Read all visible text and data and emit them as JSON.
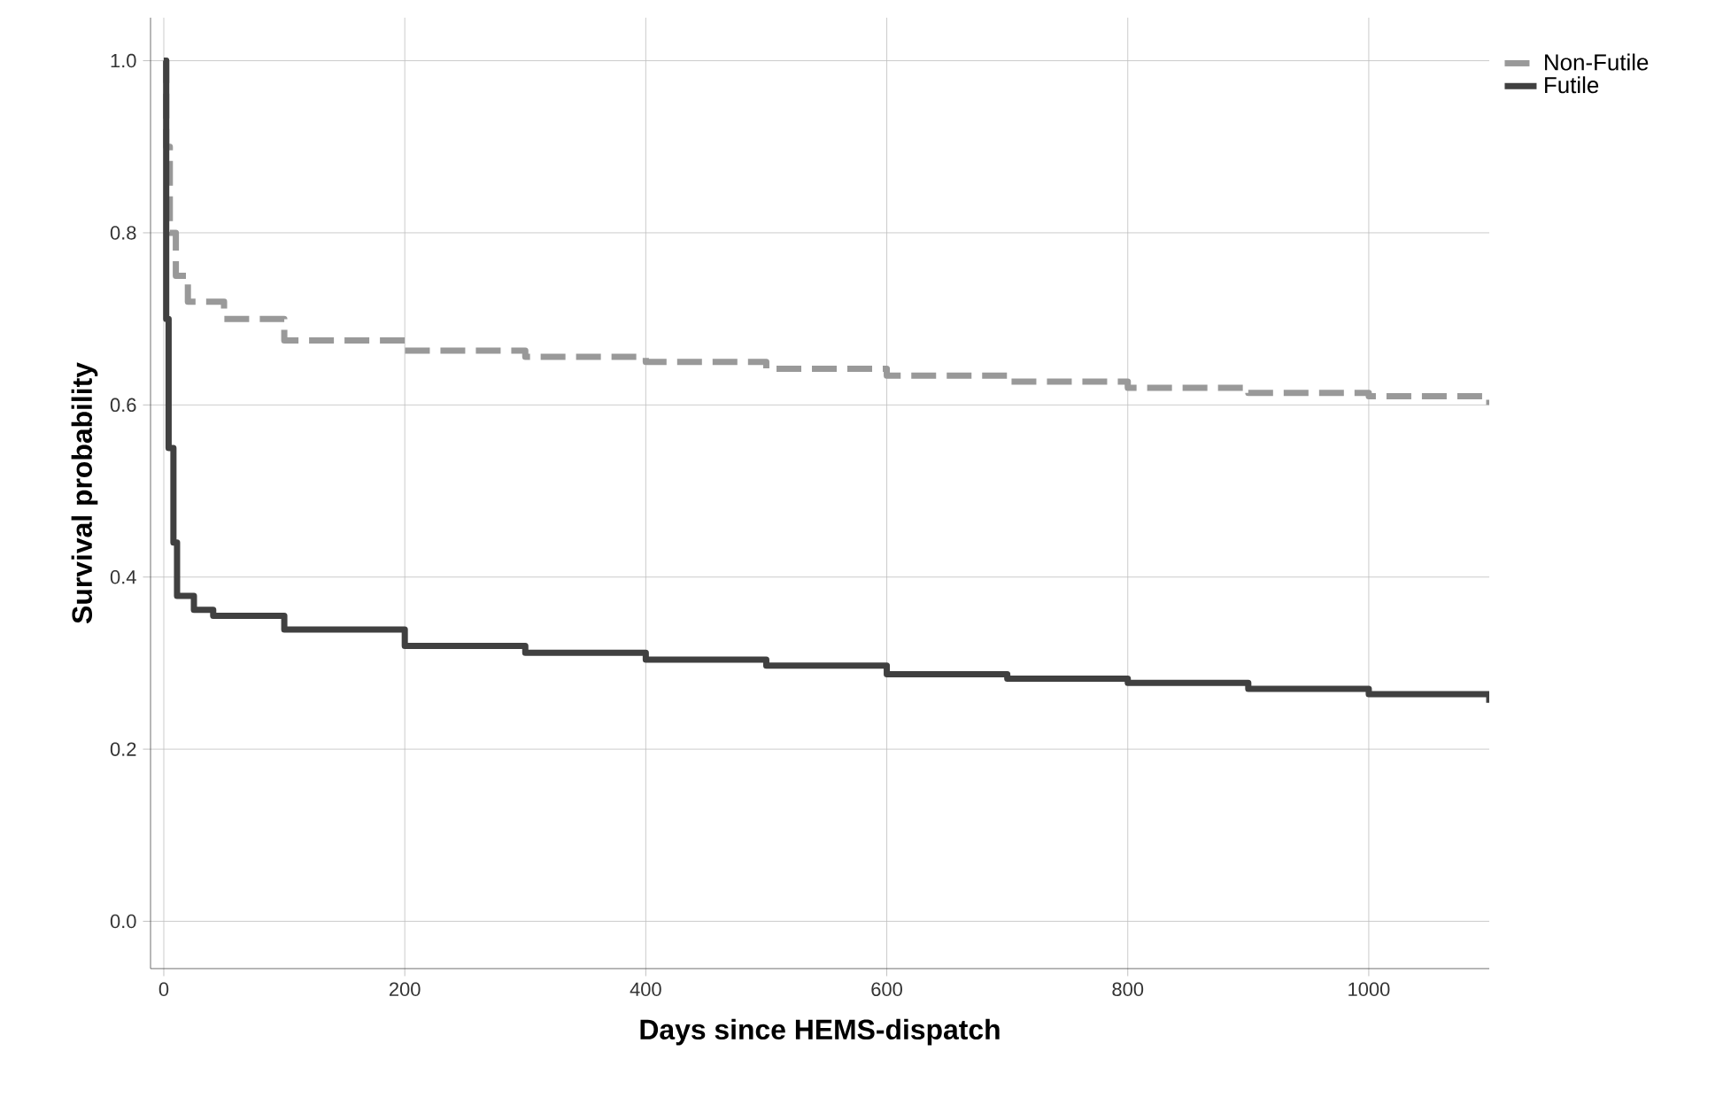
{
  "chart_data": {
    "type": "step",
    "xlabel": "Days since HEMS-dispatch",
    "ylabel": "Survival probability",
    "xlim": [
      -11,
      1100
    ],
    "ylim": [
      -0.055,
      1.05
    ],
    "xticks": [
      0,
      200,
      400,
      600,
      800,
      1000
    ],
    "yticks": [
      {
        "value": 0,
        "label": "0.0"
      },
      {
        "value": 0.2,
        "label": "0.2"
      },
      {
        "value": 0.4,
        "label": "0.4"
      },
      {
        "value": 0.6,
        "label": "0.6"
      },
      {
        "value": 0.8,
        "label": "0.8"
      },
      {
        "value": 1,
        "label": "1.0"
      }
    ],
    "grid": true,
    "legend": "top right",
    "line_style": "solid",
    "series": [
      {
        "name": "Non-Futile",
        "color": "#999999",
        "line_style": "dashed",
        "x": [
          0,
          2,
          5,
          10,
          20,
          50,
          100,
          200,
          300,
          400,
          500,
          600,
          700,
          800,
          900,
          1000,
          1100
        ],
        "values": [
          1.0,
          0.9,
          0.8,
          0.75,
          0.72,
          0.7,
          0.675,
          0.663,
          0.656,
          0.65,
          0.642,
          0.634,
          0.627,
          0.62,
          0.614,
          0.61,
          0.6
        ]
      },
      {
        "name": "Futile",
        "color": "#404040",
        "x": [
          0,
          2,
          4,
          8,
          11,
          25,
          41,
          100,
          200,
          300,
          400,
          500,
          600,
          700,
          800,
          900,
          1000,
          1100
        ],
        "values": [
          1.0,
          0.7,
          0.55,
          0.44,
          0.378,
          0.362,
          0.355,
          0.339,
          0.32,
          0.312,
          0.304,
          0.297,
          0.287,
          0.282,
          0.277,
          0.27,
          0.264,
          0.254
        ]
      }
    ]
  }
}
